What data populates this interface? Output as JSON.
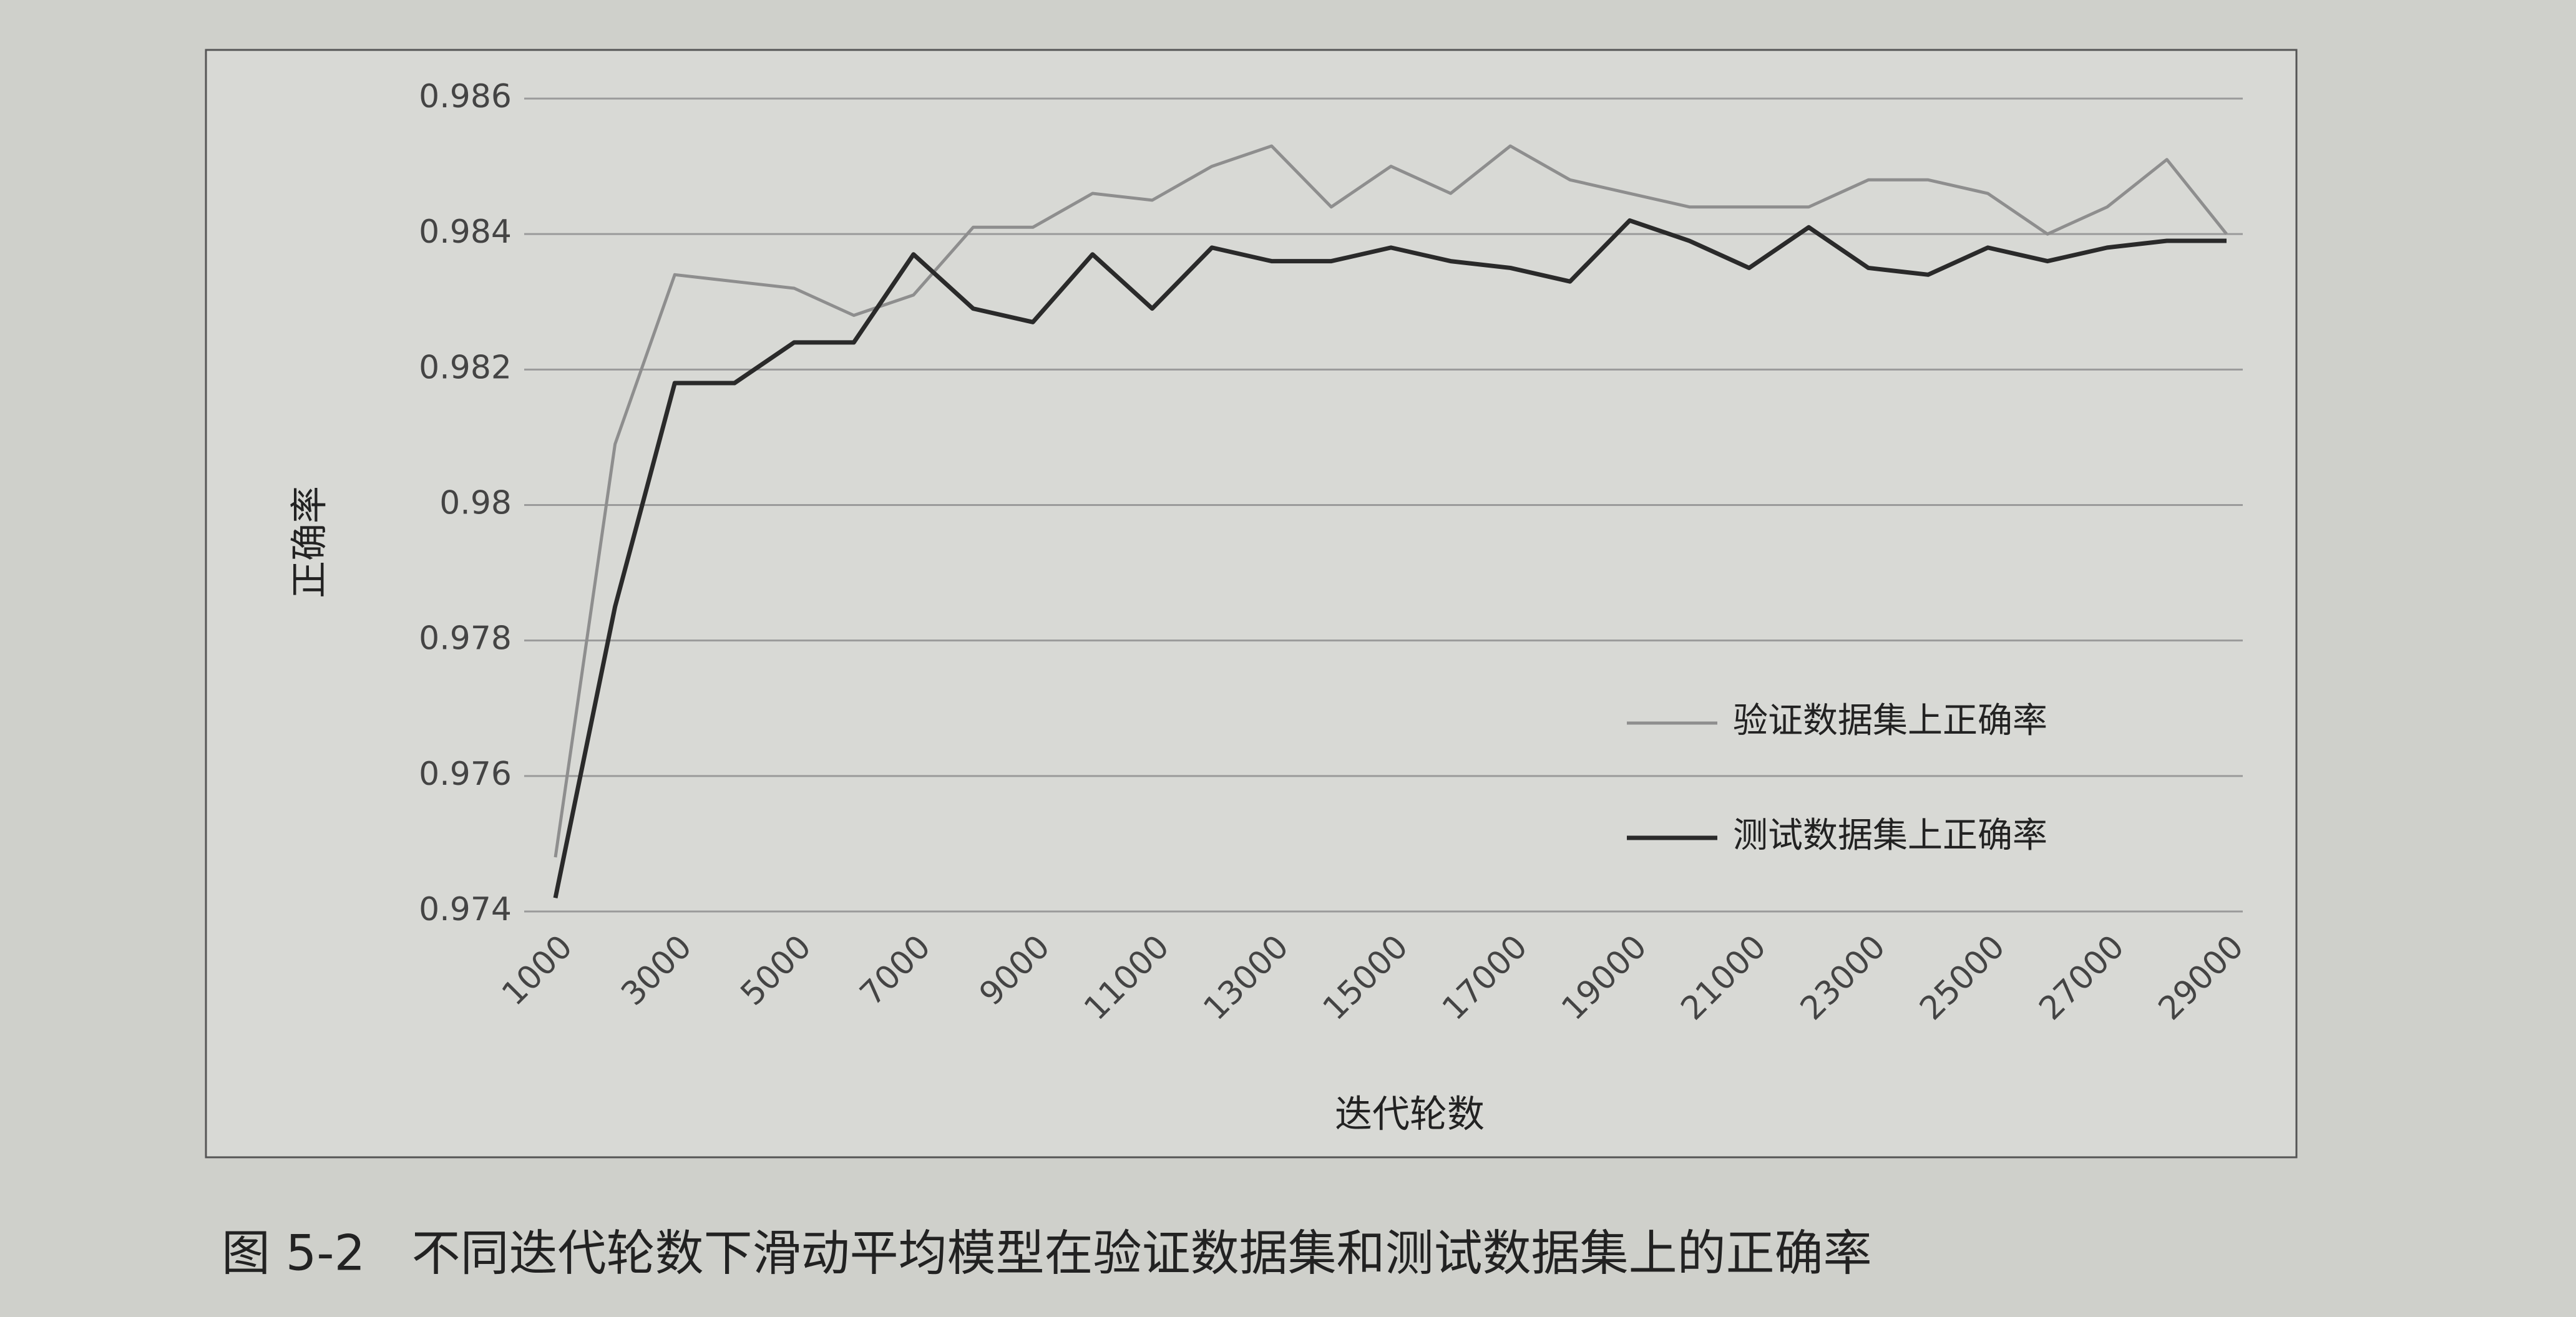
{
  "chart_data": {
    "type": "line",
    "y_label": "正确率",
    "x_label": "迭代轮数",
    "caption": "图 5-2   不同迭代轮数下滑动平均模型在验证数据集和测试数据集上的正确率",
    "categories": [
      "1000",
      null,
      "3000",
      null,
      "5000",
      null,
      "7000",
      null,
      "9000",
      null,
      "11000",
      null,
      "13000",
      null,
      "15000",
      null,
      "17000",
      null,
      "19000",
      null,
      "21000",
      null,
      "23000",
      null,
      "25000",
      null,
      "27000",
      null,
      "29000"
    ],
    "series": [
      {
        "name": "验证数据集上正确率",
        "color": "#8e8e8e",
        "values": [
          0.9748,
          0.9809,
          0.9834,
          0.9833,
          0.9832,
          0.9828,
          0.9831,
          0.9841,
          0.9841,
          0.9846,
          0.9845,
          0.985,
          0.9853,
          0.9844,
          0.985,
          0.9846,
          0.9853,
          0.9848,
          0.9846,
          0.9844,
          0.9844,
          0.9844,
          0.9848,
          0.9848,
          0.9846,
          0.984,
          0.9844,
          0.9851,
          0.984
        ]
      },
      {
        "name": "测试数据集上正确率",
        "color": "#2a2a2a",
        "values": [
          0.9742,
          0.9785,
          0.9818,
          0.9818,
          0.9824,
          0.9824,
          0.9837,
          0.9829,
          0.9827,
          0.9837,
          0.9829,
          0.9838,
          0.9836,
          0.9836,
          0.9838,
          0.9836,
          0.9835,
          0.9833,
          0.9842,
          0.9839,
          0.9835,
          0.9841,
          0.9835,
          0.9834,
          0.9838,
          0.9836,
          0.9838,
          0.9839,
          0.9839
        ]
      }
    ],
    "ylim": [
      0.974,
      0.986
    ],
    "yticks": [
      0.974,
      0.976,
      0.978,
      0.98,
      0.982,
      0.984,
      0.986
    ],
    "grid": true,
    "legend": "right"
  }
}
